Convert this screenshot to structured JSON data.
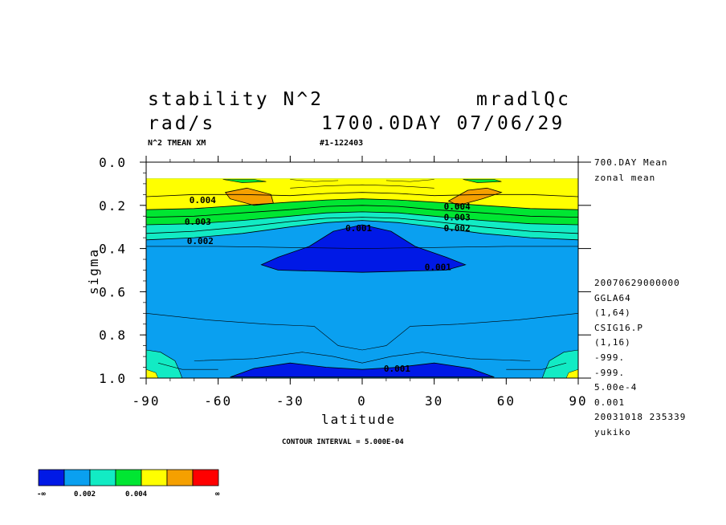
{
  "header": {
    "title_left": "stability N^2",
    "title_right": "mradlQc",
    "units": "rad/s",
    "time": "1700.0DAY 07/06/29",
    "sub_left": "N^2 TMEAN XM",
    "sub_right": "#1-122403"
  },
  "side_info": {
    "top": [
      "700.DAY Mean",
      "zonal mean"
    ],
    "bottom": [
      "20070629000000",
      "GGLA64",
      "(1,64)",
      "CSIG16.P",
      "(1,16)",
      "-999.",
      "-999.",
      "5.00e-4",
      "0.001",
      "20031018 235339",
      "yukiko"
    ]
  },
  "footer": {
    "contour_interval": "CONTOUR INTERVAL = 5.000E-04"
  },
  "colorbar": {
    "colors": [
      "#0019e6",
      "#0aa0f0",
      "#12ebc4",
      "#00e632",
      "#ffff00",
      "#f5a000",
      "#ff0000"
    ],
    "labels": [
      "-∞",
      "0.002",
      "0.004",
      "∞"
    ]
  },
  "chart_data": {
    "type": "contour",
    "title": "stability N^2",
    "xlabel": "latitude",
    "ylabel": "sigma",
    "xlim": [
      -90,
      90
    ],
    "ylim": [
      1.0,
      0.0
    ],
    "x_ticks": [
      "-90",
      "-60",
      "-30",
      "0",
      "30",
      "60",
      "90"
    ],
    "y_ticks": [
      "0.0",
      "0.2",
      "0.4",
      "0.6",
      "0.8",
      "1.0"
    ],
    "contour_interval": 0.0005,
    "contour_labels": [
      {
        "text": "0.004",
        "lat": -72,
        "sigma": 0.19
      },
      {
        "text": "0.003",
        "lat": -74,
        "sigma": 0.29
      },
      {
        "text": "0.002",
        "lat": -73,
        "sigma": 0.38
      },
      {
        "text": "0.001",
        "lat": -7,
        "sigma": 0.32
      },
      {
        "text": "0.001",
        "lat": 26,
        "sigma": 0.5
      },
      {
        "text": "0.004",
        "lat": 34,
        "sigma": 0.22
      },
      {
        "text": "0.003",
        "lat": 34,
        "sigma": 0.27
      },
      {
        "text": "0.002",
        "lat": 34,
        "sigma": 0.32
      },
      {
        "text": "0.001",
        "lat": 9,
        "sigma": 0.97
      }
    ],
    "regions": [
      {
        "level": "0.001-0.002",
        "sigma_range": [
          0.38,
          0.92
        ],
        "note": "broad tropospheric band"
      },
      {
        "level": "<0.001",
        "lat_range": [
          -42,
          43
        ],
        "sigma_range": [
          0.29,
          0.51
        ],
        "note": "upper tropical minimum"
      },
      {
        "level": "<0.001",
        "lat_range": [
          -55,
          55
        ],
        "sigma_range": [
          0.92,
          1.0
        ],
        "note": "surface minimum"
      },
      {
        "level": "0.004-0.0045",
        "lat_range": [
          -58,
          60
        ],
        "sigma_range": [
          0.07,
          0.14
        ],
        "note": "stratospheric maximum"
      },
      {
        "level": ">0.0045",
        "lat_range": [
          -57,
          -37
        ],
        "sigma_range": [
          0.12,
          0.2
        ],
        "note": "SH peak"
      },
      {
        "level": ">0.0045",
        "lat_range": [
          36,
          58
        ],
        "sigma_range": [
          0.12,
          0.2
        ],
        "note": "NH peak"
      }
    ]
  }
}
